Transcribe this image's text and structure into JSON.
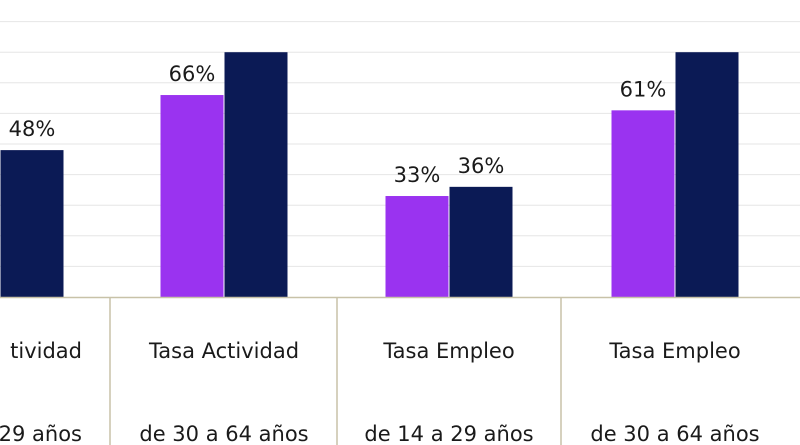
{
  "colors": {
    "series_1": "#9a33f0",
    "series_2": "#0b1a55",
    "axis": "#c8c2a8",
    "grid": "#e6e6e6"
  },
  "chart_data": {
    "type": "bar",
    "categories": [
      [
        "tividad",
        "29 años"
      ],
      [
        "Tasa Actividad",
        "de 30 a 64 años"
      ],
      [
        "Tasa Empleo",
        "de 14 a 29 años"
      ],
      [
        "Tasa Empleo",
        "de 30 a 64 años"
      ]
    ],
    "series": [
      {
        "values": [
          null,
          66,
          33,
          61
        ],
        "labels": [
          "",
          "66%",
          "33%",
          "61%"
        ]
      },
      {
        "values": [
          48,
          80,
          36,
          80
        ],
        "labels": [
          "48%",
          "",
          "36%",
          ""
        ]
      }
    ],
    "ylim": [
      0,
      100
    ],
    "grid": true,
    "legend": "none"
  }
}
